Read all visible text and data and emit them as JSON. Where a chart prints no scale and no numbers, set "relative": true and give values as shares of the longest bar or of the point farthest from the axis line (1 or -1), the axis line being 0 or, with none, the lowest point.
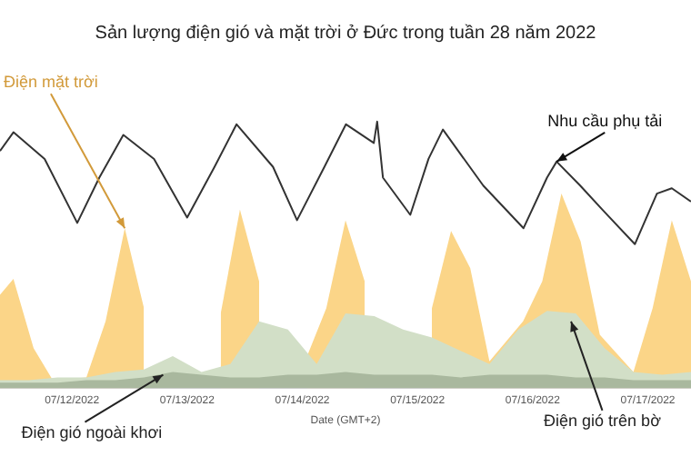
{
  "chart_data": {
    "type": "area",
    "title": "Sản lượng điện gió và mặt trời ở Đức trong tuần 28 năm 2022",
    "xlabel": "Date (GMT+2)",
    "relative": true,
    "legend": false,
    "xlim": [
      "2022-07-11T09:00",
      "2022-07-17T09:00"
    ],
    "xticks": [
      {
        "value": "2022-07-12",
        "label": "07/12/2022"
      },
      {
        "value": "2022-07-13",
        "label": "07/13/2022"
      },
      {
        "value": "2022-07-14",
        "label": "07/14/2022"
      },
      {
        "value": "2022-07-15",
        "label": "07/15/2022"
      },
      {
        "value": "2022-07-16",
        "label": "07/16/2022"
      },
      {
        "value": "2022-07-17",
        "label": "07/17/2022"
      }
    ],
    "series": [
      {
        "type": "area",
        "color": "#fbd588",
        "x": [
          "2022-07-11T09:00",
          "2022-07-11T11:48",
          "2022-07-11T16:00",
          "2022-07-11T20:00",
          "2022-07-12T03:00",
          "2022-07-12T07:00",
          "2022-07-12T11:00",
          "2022-07-12T15:00",
          "2022-07-12T19:00",
          "2022-07-13T03:00",
          "2022-07-13T07:00",
          "2022-07-13T11:00",
          "2022-07-13T15:00",
          "2022-07-13T19:00",
          "2022-07-14T01:00",
          "2022-07-14T05:00",
          "2022-07-14T09:00",
          "2022-07-14T13:00",
          "2022-07-14T17:00",
          "2022-07-14T23:00",
          "2022-07-15T03:00",
          "2022-07-15T07:00",
          "2022-07-15T11:00",
          "2022-07-15T15:00",
          "2022-07-15T22:00",
          "2022-07-16T02:00",
          "2022-07-16T06:00",
          "2022-07-16T10:00",
          "2022-07-16T14:00",
          "2022-07-16T21:00",
          "2022-07-17T01:00",
          "2022-07-17T05:00",
          "2022-07-17T09:00"
        ],
        "values": [
          0.35,
          0.41,
          0.15,
          0.03,
          0.04,
          0.25,
          0.6,
          0.3,
          null,
          null,
          0.28,
          0.67,
          0.4,
          null,
          0.12,
          0.3,
          0.63,
          0.4,
          null,
          null,
          0.3,
          0.59,
          0.45,
          0.1,
          0.25,
          0.4,
          0.73,
          0.55,
          0.2,
          0.06,
          0.3,
          0.63,
          0.4
        ]
      },
      {
        "type": "area",
        "color": "#d2dfc7",
        "x": [
          "2022-07-11T09:00",
          "2022-07-11T15:00",
          "2022-07-11T21:00",
          "2022-07-12T03:00",
          "2022-07-12T09:00",
          "2022-07-12T15:00",
          "2022-07-12T21:00",
          "2022-07-13T03:00",
          "2022-07-13T09:00",
          "2022-07-13T15:00",
          "2022-07-13T21:00",
          "2022-07-14T03:00",
          "2022-07-14T09:00",
          "2022-07-14T15:00",
          "2022-07-14T21:00",
          "2022-07-15T03:00",
          "2022-07-15T09:00",
          "2022-07-15T15:00",
          "2022-07-15T21:00",
          "2022-07-16T03:00",
          "2022-07-16T09:00",
          "2022-07-16T15:00",
          "2022-07-16T21:00",
          "2022-07-17T03:00",
          "2022-07-17T09:00"
        ],
        "values": [
          0.03,
          0.03,
          0.04,
          0.04,
          0.06,
          0.07,
          0.12,
          0.06,
          0.09,
          0.25,
          0.22,
          0.09,
          0.28,
          0.27,
          0.22,
          0.19,
          0.14,
          0.09,
          0.22,
          0.29,
          0.28,
          0.15,
          0.06,
          0.05,
          0.06
        ]
      },
      {
        "type": "area",
        "color": "#a9b89e",
        "x": [
          "2022-07-11T09:00",
          "2022-07-11T15:00",
          "2022-07-11T21:00",
          "2022-07-12T03:00",
          "2022-07-12T09:00",
          "2022-07-12T15:00",
          "2022-07-12T21:00",
          "2022-07-13T03:00",
          "2022-07-13T09:00",
          "2022-07-13T15:00",
          "2022-07-13T21:00",
          "2022-07-14T03:00",
          "2022-07-14T09:00",
          "2022-07-14T15:00",
          "2022-07-14T21:00",
          "2022-07-15T03:00",
          "2022-07-15T09:00",
          "2022-07-15T15:00",
          "2022-07-15T21:00",
          "2022-07-16T03:00",
          "2022-07-16T09:00",
          "2022-07-16T15:00",
          "2022-07-16T21:00",
          "2022-07-17T03:00",
          "2022-07-17T09:00"
        ],
        "values": [
          0.02,
          0.02,
          0.02,
          0.03,
          0.03,
          0.04,
          0.06,
          0.05,
          0.04,
          0.04,
          0.05,
          0.05,
          0.06,
          0.05,
          0.05,
          0.05,
          0.04,
          0.05,
          0.05,
          0.05,
          0.04,
          0.04,
          0.03,
          0.03,
          0.03
        ]
      },
      {
        "type": "line",
        "color": "#333333",
        "x": [
          "2022-07-11T09:00",
          "2022-07-11T11:48",
          "2022-07-11T18:18",
          "2022-07-12T01:06",
          "2022-07-12T05:42",
          "2022-07-12T10:42",
          "2022-07-12T17:06",
          "2022-07-13T00:00",
          "2022-07-13T05:42",
          "2022-07-13T10:18",
          "2022-07-13T17:54",
          "2022-07-13T22:54",
          "2022-07-14T04:36",
          "2022-07-14T09:06",
          "2022-07-14T14:54",
          "2022-07-14T15:36",
          "2022-07-14T16:48",
          "2022-07-14T22:30",
          "2022-07-15T02:18",
          "2022-07-15T05:18",
          "2022-07-15T13:42",
          "2022-07-15T22:06",
          "2022-07-16T03:00",
          "2022-07-16T05:00",
          "2022-07-16T09:54",
          "2022-07-16T14:30",
          "2022-07-16T21:18",
          "2022-07-17T01:54",
          "2022-07-17T05:00",
          "2022-07-17T09:00"
        ],
        "values": [
          0.89,
          0.96,
          0.86,
          0.62,
          0.79,
          0.95,
          0.86,
          0.64,
          0.83,
          0.99,
          0.83,
          0.63,
          0.83,
          0.99,
          0.92,
          1.0,
          0.79,
          0.65,
          0.86,
          0.97,
          0.76,
          0.6,
          0.79,
          0.85,
          0.76,
          0.67,
          0.54,
          0.73,
          0.75,
          0.7
        ]
      }
    ],
    "annotations": [
      {
        "text": "Điện mặt trời",
        "x": "2022-07-12T11:00",
        "y": 0.6
      },
      {
        "text": "Nhu cầu phụ tải",
        "x": "2022-07-16T05:00",
        "y": 0.85
      },
      {
        "text": "Điện gió ngoài khơi",
        "x": "2022-07-12T19:00",
        "y": 0.05
      },
      {
        "text": "Điện gió trên bờ",
        "x": "2022-07-16T08:00",
        "y": 0.25
      }
    ]
  }
}
